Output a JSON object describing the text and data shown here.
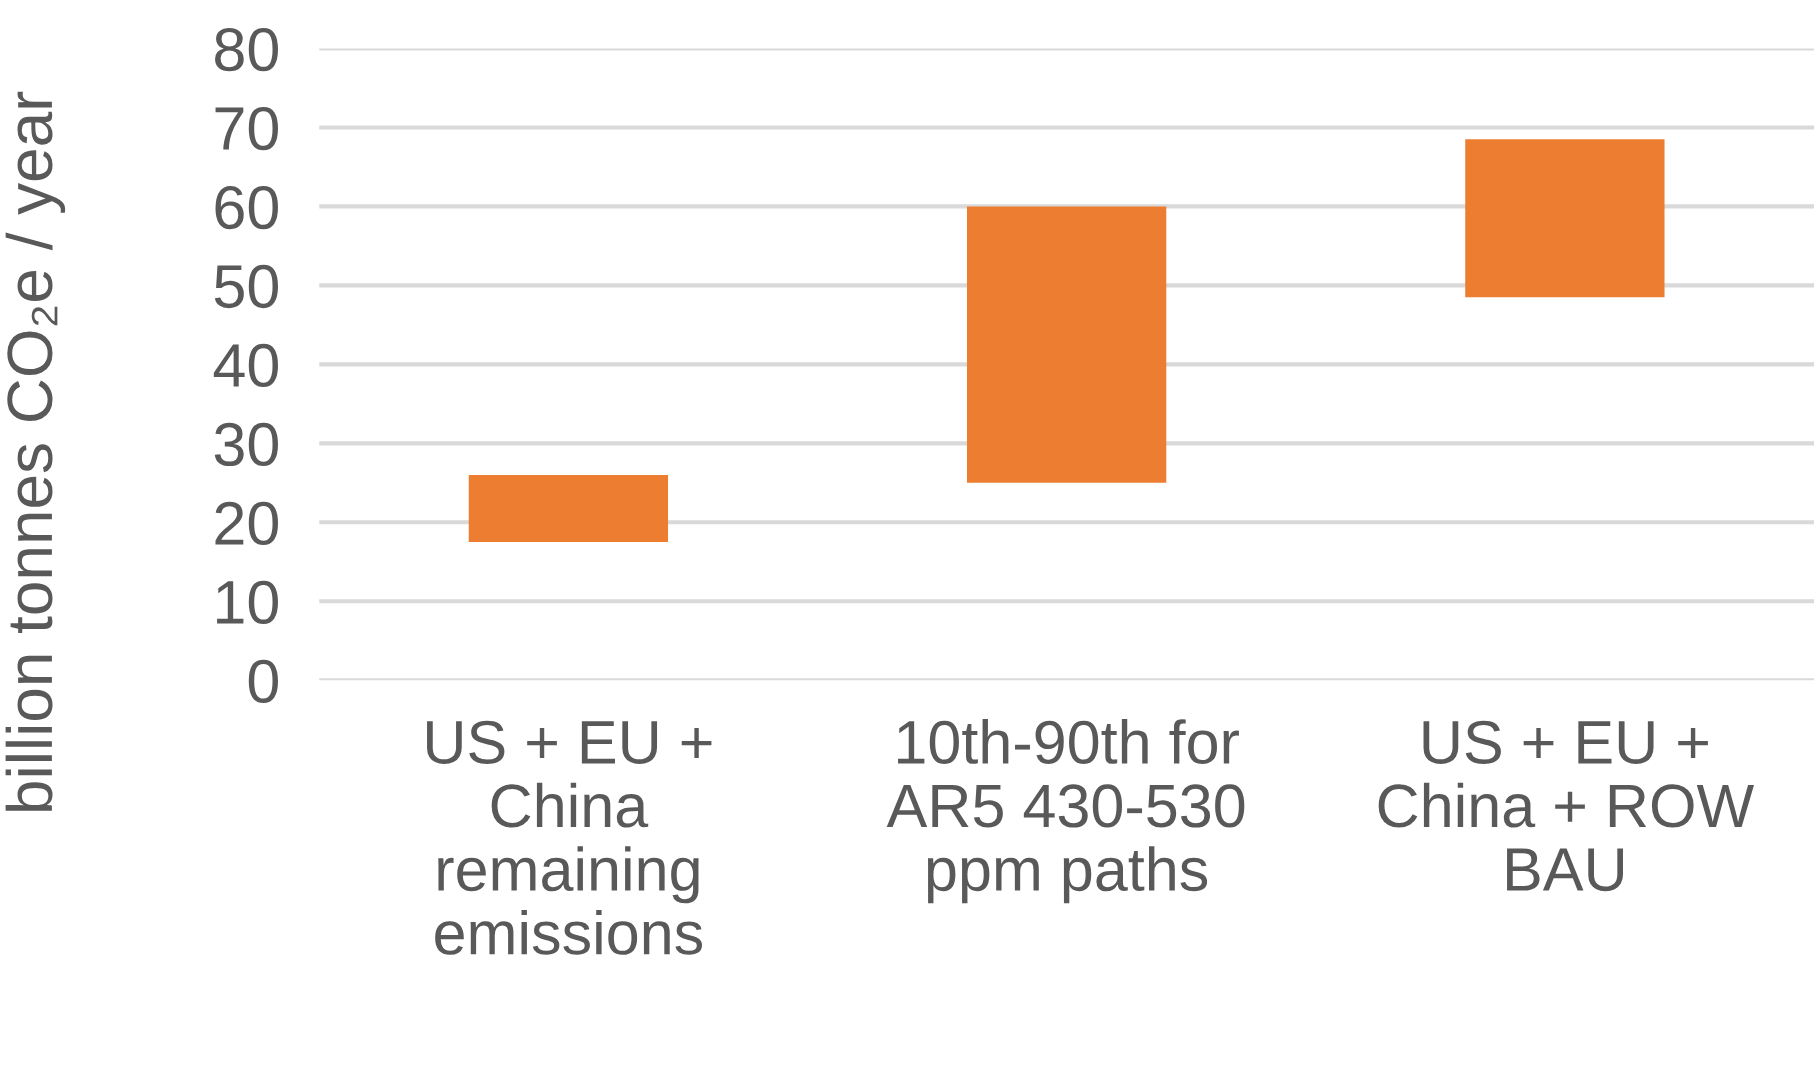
{
  "chart_data": {
    "type": "bar",
    "ylabel": "billion tonnes CO₂e / year",
    "categories": [
      "US + EU +\nChina\nremaining\nemissions",
      "10th-90th for\nAR5 430-530\nppm paths",
      "US + EU +\nChina + ROW\nBAU"
    ],
    "values": [
      8.5,
      35,
      20
    ],
    "base": [
      17.5,
      25,
      48.5
    ],
    "color": "#ed7d31",
    "ylim": [
      0,
      80
    ],
    "yticks": [
      0,
      10,
      20,
      30,
      40,
      50,
      60,
      70,
      80
    ],
    "grid": "y",
    "legend": false
  }
}
